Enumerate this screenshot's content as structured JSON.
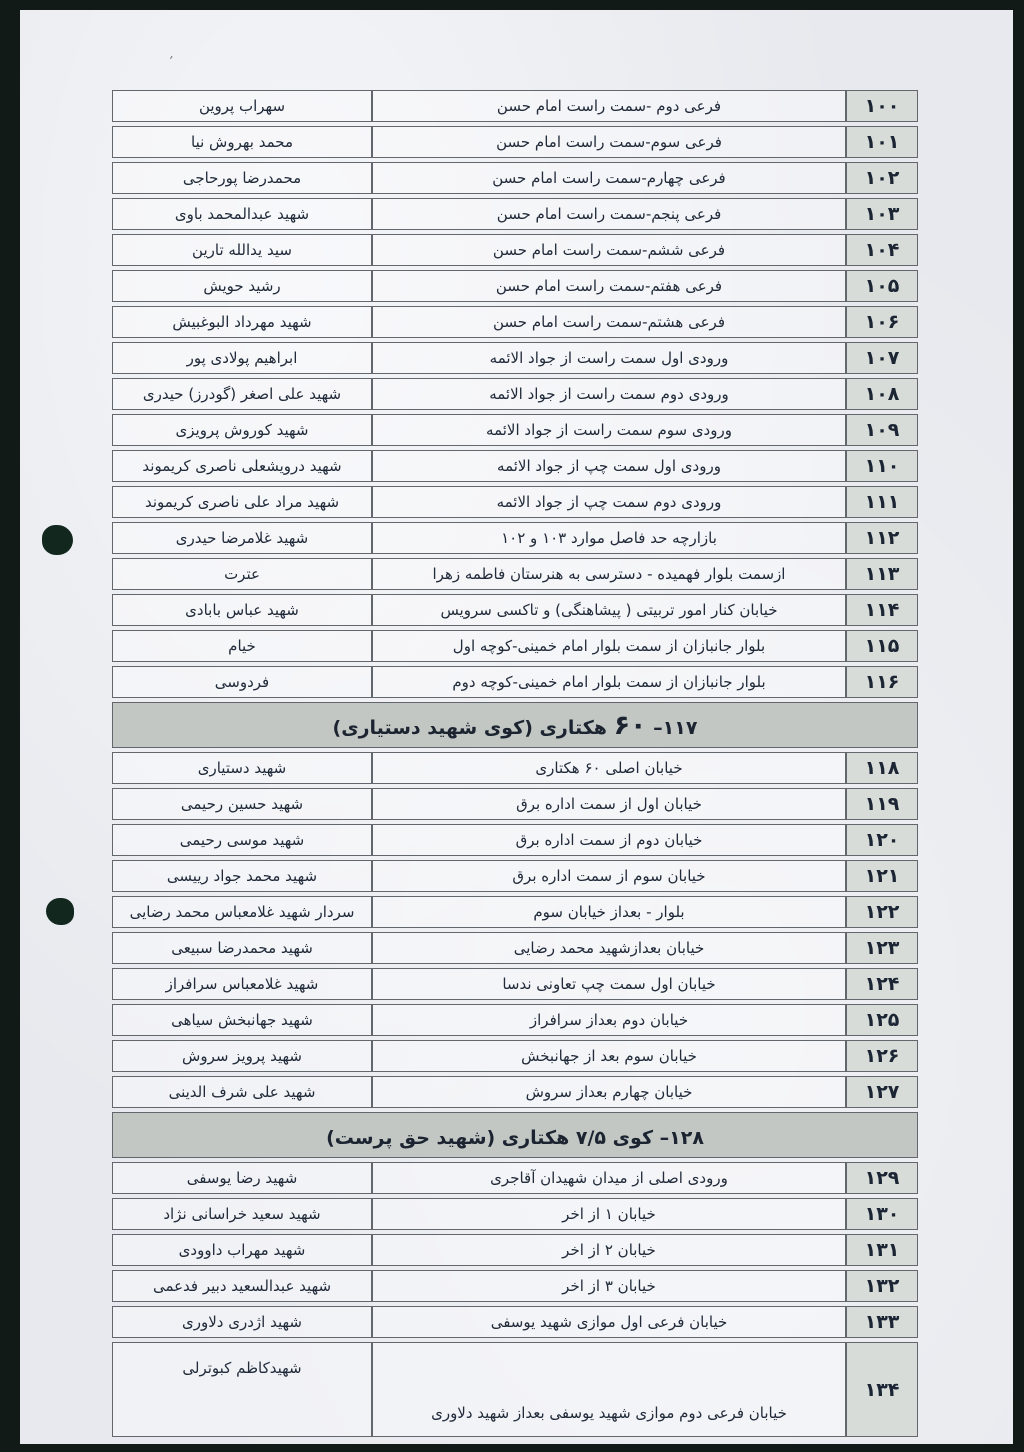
{
  "document": {
    "language": "fa",
    "direction": "rtl",
    "colors": {
      "paper": "#e7e9ee",
      "scan_border": "#111a16",
      "number_cell_bg": "#d7dcd8",
      "section_band_bg": "#c2c7c4",
      "table_line": "#62676e",
      "ink": "#212b3a"
    },
    "columns": [
      "number",
      "location",
      "name"
    ]
  },
  "table": {
    "entries": [
      {
        "kind": "row",
        "num": "۱۰۰",
        "desc": "فرعی دوم -سمت راست امام حسن",
        "name": "سهراب پروین"
      },
      {
        "kind": "row",
        "num": "۱۰۱",
        "desc": "فرعی سوم-سمت راست امام حسن",
        "name": "محمد بهروش نیا"
      },
      {
        "kind": "row",
        "num": "۱۰۲",
        "desc": "فرعی چهارم-سمت راست امام حسن",
        "name": "محمدرضا پورحاجی"
      },
      {
        "kind": "row",
        "num": "۱۰۳",
        "desc": "فرعی پنجم-سمت راست امام حسن",
        "name": "شهید عبدالمحمد باوی"
      },
      {
        "kind": "row",
        "num": "۱۰۴",
        "desc": "فرعی ششم-سمت راست امام حسن",
        "name": "سید یدالله تارین"
      },
      {
        "kind": "row",
        "num": "۱۰۵",
        "desc": "فرعی هفتم-سمت راست امام حسن",
        "name": "رشید حویش"
      },
      {
        "kind": "row",
        "num": "۱۰۶",
        "desc": "فرعی هشتم-سمت راست امام حسن",
        "name": "شهید مهرداد البوغبیش"
      },
      {
        "kind": "row",
        "num": "۱۰۷",
        "desc": "ورودی اول سمت راست از جواد الائمه",
        "name": "ابراهیم پولادی پور"
      },
      {
        "kind": "row",
        "num": "۱۰۸",
        "desc": "ورودی دوم سمت راست از جواد الائمه",
        "name": "شهید علی اصغر (گودرز) حیدری"
      },
      {
        "kind": "row",
        "num": "۱۰۹",
        "desc": "ورودی سوم سمت راست از جواد الائمه",
        "name": "شهید کوروش پرویزی"
      },
      {
        "kind": "row",
        "num": "۱۱۰",
        "desc": "ورودی اول سمت چپ از جواد الائمه",
        "name": "شهید درویشعلی ناصری کریموند"
      },
      {
        "kind": "row",
        "num": "۱۱۱",
        "desc": "ورودی دوم سمت چپ از جواد الائمه",
        "name": "شهید مراد علی ناصری کریموند"
      },
      {
        "kind": "row",
        "num": "۱۱۲",
        "desc": "بازارچه حد فاصل موارد ۱۰۳ و ۱۰۲",
        "name": "شهید غلامرضا حیدری"
      },
      {
        "kind": "row",
        "num": "۱۱۳",
        "desc": "ازسمت بلوار فهمیده - دسترسی به هنرستان فاطمه زهرا",
        "name": "عترت"
      },
      {
        "kind": "row",
        "num": "۱۱۴",
        "desc": "خیابان کنار امور تربیتی ( پیشاهنگی) و تاکسی سرویس",
        "name": "شهید عباس بابادی"
      },
      {
        "kind": "row",
        "num": "۱۱۵",
        "desc": "بلوار جانبازان از سمت بلوار امام خمینی-کوچه اول",
        "name": "خیام"
      },
      {
        "kind": "row",
        "num": "۱۱۶",
        "desc": "بلوار جانبازان از سمت بلوار امام خمینی-کوچه دوم",
        "name": "فردوسی"
      },
      {
        "kind": "section",
        "prefix": "۱۱۷– ",
        "big": "۶۰",
        "suffix": " هکتاری (کوی شهید دستیاری)"
      },
      {
        "kind": "row",
        "num": "۱۱۸",
        "desc": "خیابان اصلی ۶۰ هکتاری",
        "name": "شهید دستیاری"
      },
      {
        "kind": "row",
        "num": "۱۱۹",
        "desc": "خیابان اول از سمت اداره برق",
        "name": "شهید حسین رحیمی"
      },
      {
        "kind": "row",
        "num": "۱۲۰",
        "desc": "خیابان دوم از سمت اداره برق",
        "name": "شهید موسی رحیمی"
      },
      {
        "kind": "row",
        "num": "۱۲۱",
        "desc": "خیابان سوم از سمت اداره برق",
        "name": "شهید محمد جواد رییسی"
      },
      {
        "kind": "row",
        "num": "۱۲۲",
        "desc": "بلوار - بعداز خیابان سوم",
        "name": "سردار شهید غلامعباس محمد رضایی"
      },
      {
        "kind": "row",
        "num": "۱۲۳",
        "desc": "خیابان بعدازشهید محمد رضایی",
        "name": "شهید محمدرضا سبیعی"
      },
      {
        "kind": "row",
        "num": "۱۲۴",
        "desc": "خیابان اول سمت چپ تعاونی ندسا",
        "name": "شهید غلامعباس سرافراز"
      },
      {
        "kind": "row",
        "num": "۱۲۵",
        "desc": "خیابان دوم  بعداز سرافراز",
        "name": "شهید جهانبخش سیاهی"
      },
      {
        "kind": "row",
        "num": "۱۲۶",
        "desc": "خیابان سوم بعد از جهانبخش",
        "name": "شهید پرویز سروش"
      },
      {
        "kind": "row",
        "num": "۱۲۷",
        "desc": "خیابان چهارم بعداز سروش",
        "name": "شهید علی شرف الدینی"
      },
      {
        "kind": "section",
        "prefix": "۱۲۸– کوی ۷/۵ هکتاری (شهید حق پرست)",
        "big": "",
        "suffix": ""
      },
      {
        "kind": "row",
        "num": "۱۲۹",
        "desc": "ورودی اصلی  از میدان شهیدان آقاجری",
        "name": "شهید رضا یوسفی"
      },
      {
        "kind": "row",
        "num": "۱۳۰",
        "desc": "خیابان ۱ از اخر",
        "name": "شهید سعید خراسانی نژاد"
      },
      {
        "kind": "row",
        "num": "۱۳۱",
        "desc": "خیابان ۲ از اخر",
        "name": "شهید مهراب داوودی"
      },
      {
        "kind": "row",
        "num": "۱۳۲",
        "desc": "خیابان ۳ از اخر",
        "name": "شهید عبدالسعید دبیر فدعمی"
      },
      {
        "kind": "row",
        "num": "۱۳۳",
        "desc": "خیابان فرعی اول موازی شهید یوسفی",
        "name": "شهید اژدری دلاوری"
      },
      {
        "kind": "row",
        "num": "۱۳۴",
        "desc": "خیابان فرعی دوم موازی شهید یوسفی بعداز شهید دلاوری",
        "name": "شهیدکاظم کبوترلی",
        "tall": true
      }
    ]
  },
  "marks": {
    "scan_speck": "٬"
  }
}
